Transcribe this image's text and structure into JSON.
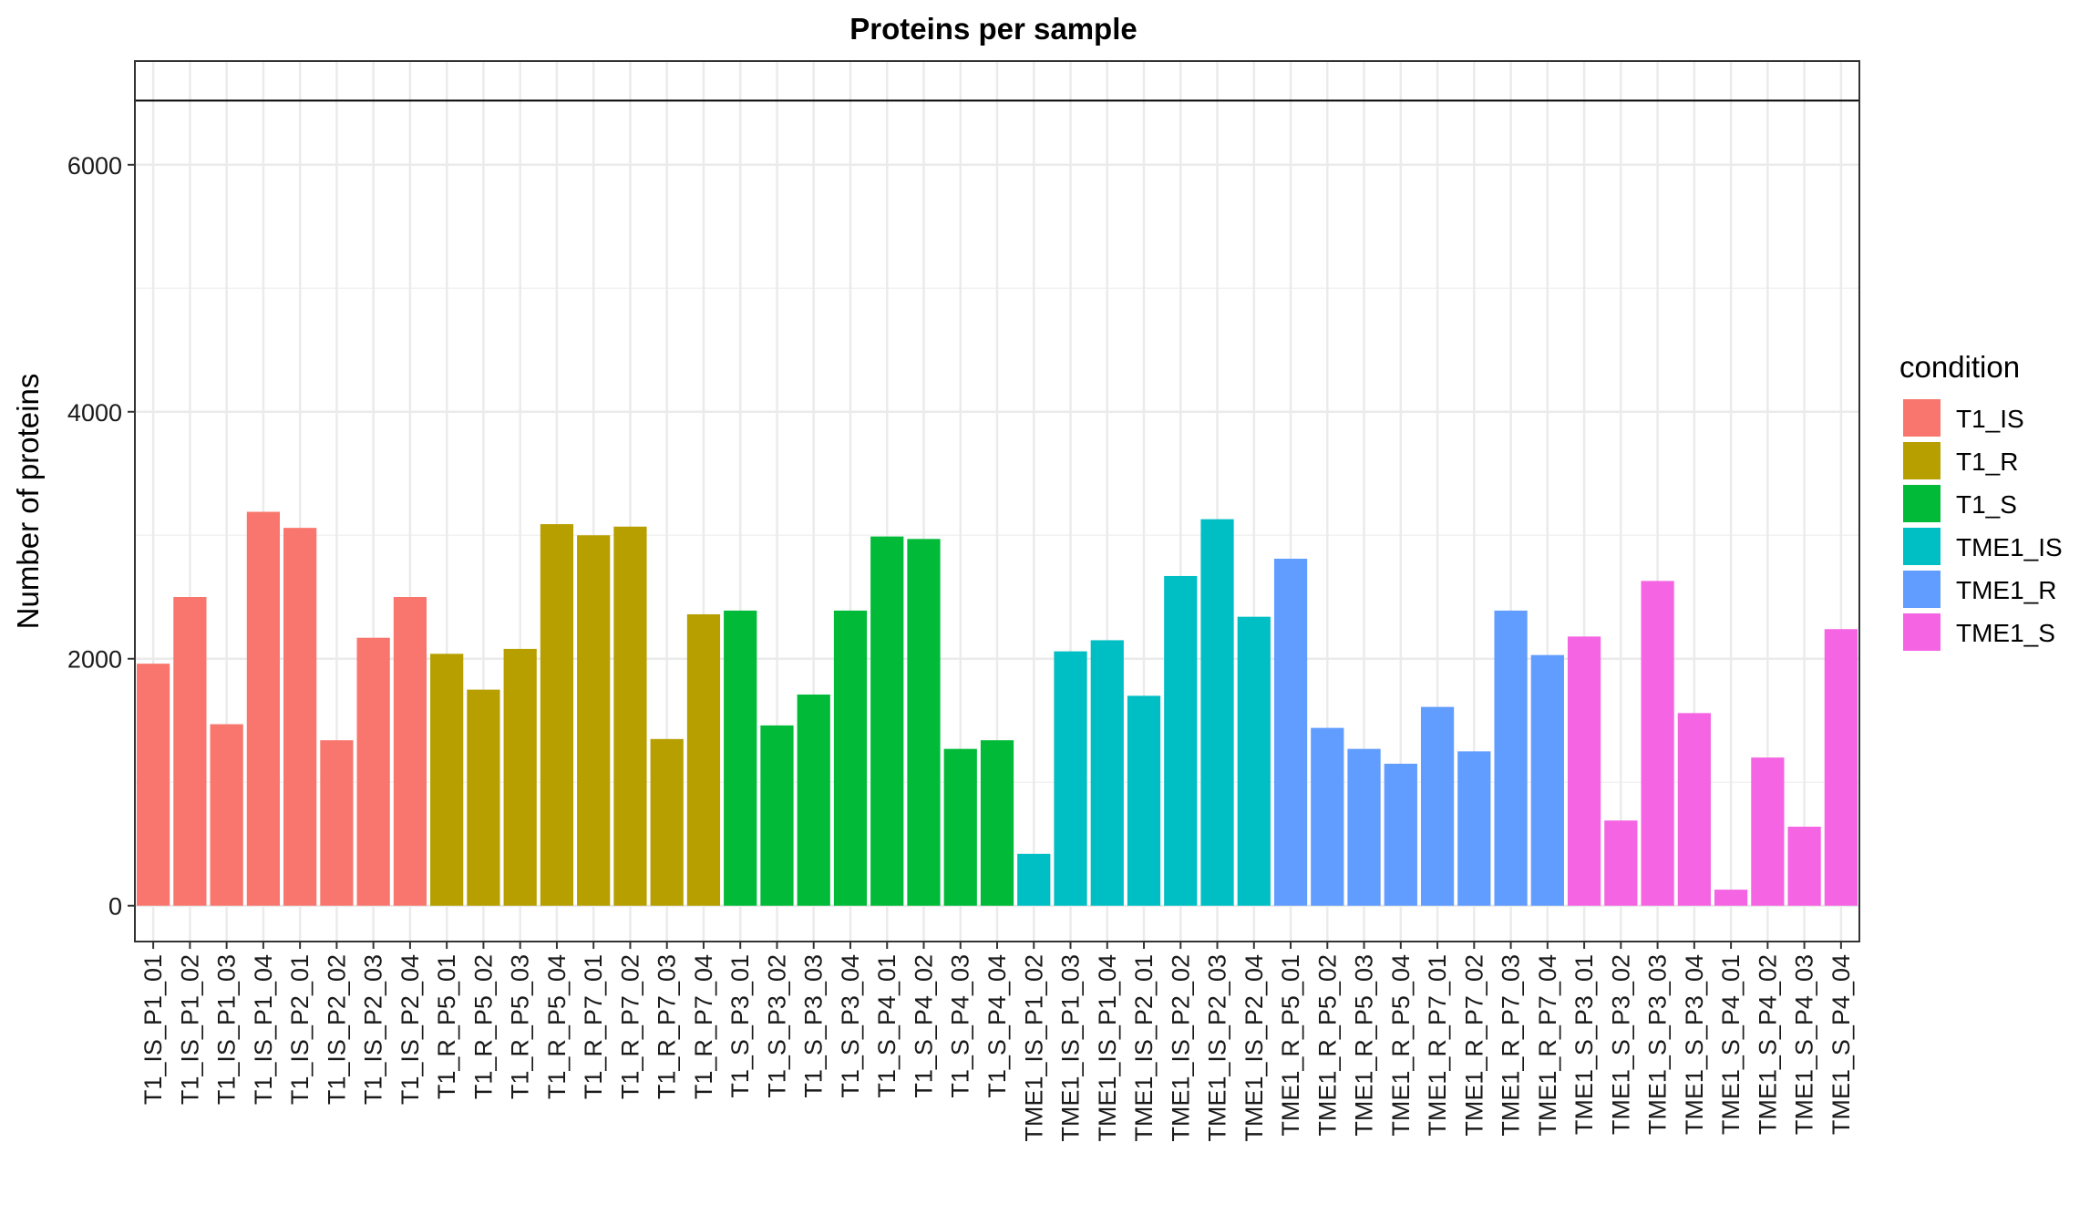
{
  "chart_data": {
    "type": "bar",
    "title": "Proteins per sample",
    "xlabel": "",
    "ylabel": "Number of proteins",
    "ylim": [
      -290,
      6840
    ],
    "yticks": [
      0,
      2000,
      4000,
      6000
    ],
    "ytick_labels": [
      "0",
      "2000",
      "4000",
      "6000"
    ],
    "hline": 6520,
    "grid": true,
    "legend": {
      "title": "condition",
      "placement": "right"
    },
    "groups": [
      {
        "name": "T1_IS",
        "color": "#F8766D"
      },
      {
        "name": "T1_R",
        "color": "#B79F00"
      },
      {
        "name": "T1_S",
        "color": "#00BA38"
      },
      {
        "name": "TME1_IS",
        "color": "#00BFC4"
      },
      {
        "name": "TME1_R",
        "color": "#619CFF"
      },
      {
        "name": "TME1_S",
        "color": "#F564E3"
      }
    ],
    "categories": [
      "T1_IS_P1_01",
      "T1_IS_P1_02",
      "T1_IS_P1_03",
      "T1_IS_P1_04",
      "T1_IS_P2_01",
      "T1_IS_P2_02",
      "T1_IS_P2_03",
      "T1_IS_P2_04",
      "T1_R_P5_01",
      "T1_R_P5_02",
      "T1_R_P5_03",
      "T1_R_P5_04",
      "T1_R_P7_01",
      "T1_R_P7_02",
      "T1_R_P7_03",
      "T1_R_P7_04",
      "T1_S_P3_01",
      "T1_S_P3_02",
      "T1_S_P3_03",
      "T1_S_P3_04",
      "T1_S_P4_01",
      "T1_S_P4_02",
      "T1_S_P4_03",
      "T1_S_P4_04",
      "TME1_IS_P1_02",
      "TME1_IS_P1_03",
      "TME1_IS_P1_04",
      "TME1_IS_P2_01",
      "TME1_IS_P2_02",
      "TME1_IS_P2_03",
      "TME1_IS_P2_04",
      "TME1_R_P5_01",
      "TME1_R_P5_02",
      "TME1_R_P5_03",
      "TME1_R_P5_04",
      "TME1_R_P7_01",
      "TME1_R_P7_02",
      "TME1_R_P7_03",
      "TME1_R_P7_04",
      "TME1_S_P3_01",
      "TME1_S_P3_02",
      "TME1_S_P3_03",
      "TME1_S_P3_04",
      "TME1_S_P4_01",
      "TME1_S_P4_02",
      "TME1_S_P4_03",
      "TME1_S_P4_04"
    ],
    "condition": [
      "T1_IS",
      "T1_IS",
      "T1_IS",
      "T1_IS",
      "T1_IS",
      "T1_IS",
      "T1_IS",
      "T1_IS",
      "T1_R",
      "T1_R",
      "T1_R",
      "T1_R",
      "T1_R",
      "T1_R",
      "T1_R",
      "T1_R",
      "T1_S",
      "T1_S",
      "T1_S",
      "T1_S",
      "T1_S",
      "T1_S",
      "T1_S",
      "T1_S",
      "TME1_IS",
      "TME1_IS",
      "TME1_IS",
      "TME1_IS",
      "TME1_IS",
      "TME1_IS",
      "TME1_IS",
      "TME1_R",
      "TME1_R",
      "TME1_R",
      "TME1_R",
      "TME1_R",
      "TME1_R",
      "TME1_R",
      "TME1_R",
      "TME1_S",
      "TME1_S",
      "TME1_S",
      "TME1_S",
      "TME1_S",
      "TME1_S",
      "TME1_S",
      "TME1_S"
    ],
    "values": [
      1960,
      2500,
      1470,
      3190,
      3060,
      1340,
      2170,
      2500,
      2040,
      1750,
      2080,
      3090,
      3000,
      3070,
      1350,
      2360,
      2390,
      1460,
      1710,
      2390,
      2990,
      2970,
      1270,
      1340,
      420,
      2060,
      2150,
      1700,
      2670,
      3130,
      2340,
      2810,
      1440,
      1270,
      1150,
      1610,
      1250,
      2390,
      2030,
      2180,
      690,
      2630,
      1560,
      130,
      1200,
      640,
      2240
    ]
  }
}
